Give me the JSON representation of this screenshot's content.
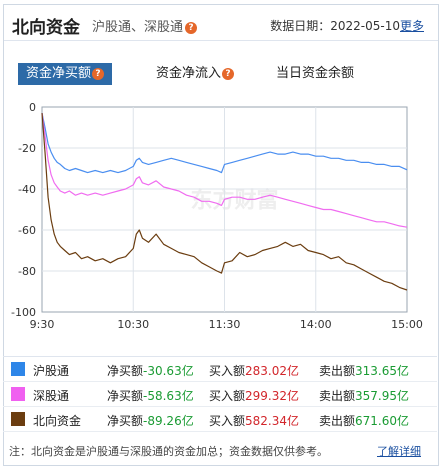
{
  "header": {
    "title": "北向资金",
    "subtitle": "沪股通、深股通",
    "date_label": "数据日期：2022-05-10",
    "more": "更多"
  },
  "tabs": [
    {
      "label": "资金净买额",
      "active": true
    },
    {
      "label": "资金净流入",
      "active": false
    },
    {
      "label": "当日资金余额",
      "active": false
    }
  ],
  "chart_data": {
    "type": "line",
    "x_ticks": [
      "9:30",
      "10:30",
      "11:30",
      "14:00",
      "15:00"
    ],
    "y_ticks": [
      "0",
      "-20",
      "-40",
      "-60",
      "-80",
      "-100"
    ],
    "ylim": [
      -100,
      0
    ],
    "grid": true,
    "watermark": "东方财富",
    "x_index_range": [
      0,
      240
    ],
    "series": [
      {
        "name": "沪股通",
        "color": "#4a8ef0",
        "x": [
          0,
          2,
          4,
          6,
          8,
          10,
          12,
          15,
          18,
          22,
          26,
          30,
          35,
          40,
          45,
          50,
          55,
          60,
          62,
          64,
          66,
          70,
          75,
          80,
          85,
          90,
          95,
          100,
          105,
          110,
          115,
          118,
          120,
          125,
          130,
          135,
          140,
          145,
          150,
          155,
          160,
          165,
          170,
          175,
          180,
          185,
          190,
          195,
          200,
          205,
          210,
          215,
          220,
          225,
          230,
          235,
          240
        ],
        "y": [
          -3,
          -10,
          -18,
          -22,
          -25,
          -27,
          -28,
          -30,
          -31,
          -30,
          -31,
          -32,
          -31,
          -32,
          -31,
          -32,
          -31,
          -29,
          -26,
          -25,
          -27,
          -28,
          -27,
          -26,
          -25,
          -26,
          -27,
          -28,
          -29,
          -30,
          -31,
          -32,
          -28,
          -27,
          -26,
          -25,
          -24,
          -23,
          -22,
          -23,
          -23,
          -22,
          -23,
          -23,
          -24,
          -24,
          -25,
          -25,
          -26,
          -26,
          -27,
          -27,
          -28,
          -28,
          -29,
          -29,
          -30.63
        ]
      },
      {
        "name": "深股通",
        "color": "#f06cf0",
        "x": [
          0,
          2,
          4,
          6,
          8,
          10,
          12,
          15,
          18,
          22,
          26,
          30,
          35,
          40,
          45,
          50,
          55,
          60,
          62,
          64,
          66,
          70,
          75,
          80,
          85,
          90,
          95,
          100,
          105,
          110,
          115,
          118,
          120,
          125,
          130,
          135,
          140,
          145,
          150,
          155,
          160,
          165,
          170,
          175,
          180,
          185,
          190,
          195,
          200,
          205,
          210,
          215,
          220,
          225,
          230,
          235,
          240
        ],
        "y": [
          -3,
          -14,
          -26,
          -33,
          -37,
          -39,
          -41,
          -42,
          -41,
          -43,
          -42,
          -43,
          -42,
          -43,
          -42,
          -41,
          -40,
          -38,
          -35,
          -34,
          -37,
          -38,
          -36,
          -39,
          -40,
          -41,
          -43,
          -44,
          -46,
          -46,
          -47,
          -48,
          -45,
          -44,
          -44,
          -45,
          -45,
          -44,
          -43,
          -44,
          -45,
          -46,
          -47,
          -48,
          -49,
          -50,
          -50,
          -51,
          -52,
          -53,
          -54,
          -55,
          -56,
          -56,
          -57,
          -58,
          -58.63
        ]
      },
      {
        "name": "北向资金",
        "color": "#6b3d10",
        "x": [
          0,
          2,
          4,
          6,
          8,
          10,
          12,
          15,
          18,
          22,
          26,
          30,
          35,
          40,
          45,
          50,
          55,
          60,
          62,
          64,
          66,
          70,
          75,
          80,
          85,
          90,
          95,
          100,
          105,
          110,
          115,
          118,
          120,
          125,
          130,
          135,
          140,
          145,
          150,
          155,
          160,
          165,
          170,
          175,
          180,
          185,
          190,
          195,
          200,
          205,
          210,
          215,
          220,
          225,
          230,
          235,
          240
        ],
        "y": [
          -3,
          -22,
          -44,
          -55,
          -62,
          -66,
          -68,
          -70,
          -72,
          -71,
          -74,
          -73,
          -75,
          -74,
          -76,
          -74,
          -73,
          -69,
          -62,
          -60,
          -64,
          -66,
          -62,
          -67,
          -69,
          -71,
          -72,
          -73,
          -76,
          -78,
          -80,
          -81,
          -76,
          -75,
          -71,
          -73,
          -72,
          -70,
          -69,
          -68,
          -66,
          -68,
          -67,
          -70,
          -71,
          -72,
          -74,
          -73,
          -76,
          -77,
          -79,
          -81,
          -83,
          -85,
          -86,
          -88,
          -89.26
        ]
      }
    ]
  },
  "legend": [
    {
      "name": "沪股通",
      "color": "#2e86e8",
      "net_label": "净买额",
      "net_value": "-30.63亿",
      "buy_label": "买入额",
      "buy_value": "283.02亿",
      "sell_label": "卖出额",
      "sell_value": "313.65亿"
    },
    {
      "name": "深股通",
      "color": "#f060f0",
      "net_label": "净买额",
      "net_value": "-58.63亿",
      "buy_label": "买入额",
      "buy_value": "299.32亿",
      "sell_label": "卖出额",
      "sell_value": "357.95亿"
    },
    {
      "name": "北向资金",
      "color": "#6b3d10",
      "net_label": "净买额",
      "net_value": "-89.26亿",
      "buy_label": "买入额",
      "buy_value": "582.34亿",
      "sell_label": "卖出额",
      "sell_value": "671.60亿"
    }
  ],
  "footer": {
    "note": "注：北向资金是沪股通与深股通的资金加总；资金数据仅供参考。",
    "link": "了解详细"
  }
}
